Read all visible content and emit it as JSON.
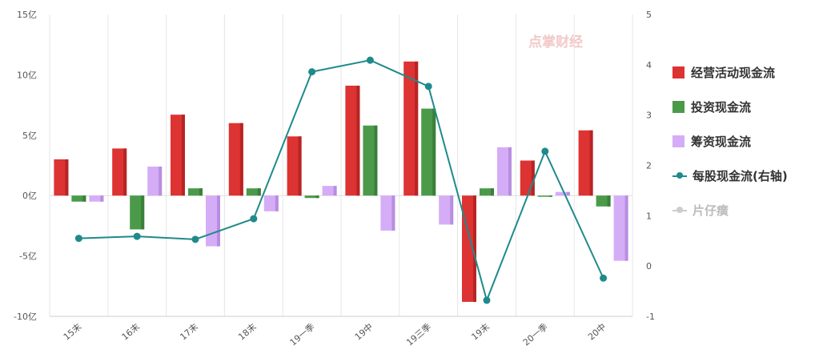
{
  "colors": {
    "operating": "#dd3333",
    "investing": "#4a9a4a",
    "financing": "#d5adf7",
    "per_share": "#1f8a8a",
    "hidden_series": "#cccccc",
    "grid": "#e6e6e6",
    "watermark": "#f2c9c9"
  },
  "watermark": {
    "text": "点掌财经"
  },
  "legend": [
    {
      "label": "经营活动现金流",
      "kind": "bar",
      "color": "#dd3333",
      "active": true
    },
    {
      "label": "投资现金流",
      "kind": "bar",
      "color": "#4a9a4a",
      "active": true
    },
    {
      "label": "筹资现金流",
      "kind": "bar",
      "color": "#d5adf7",
      "active": true
    },
    {
      "label": "每股现金流(右轴)",
      "kind": "line",
      "color": "#1f8a8a",
      "active": true
    },
    {
      "label": "片仔癀",
      "kind": "line",
      "color": "#cccccc",
      "active": false
    }
  ],
  "chart_data": {
    "type": "bar",
    "categories": [
      "15末",
      "16末",
      "17末",
      "18末",
      "19一季",
      "19中",
      "19三季",
      "19末",
      "20一季",
      "20中"
    ],
    "left_axis": {
      "ylim": [
        -10,
        15
      ],
      "ticks": [
        15,
        10,
        5,
        0,
        -5,
        -10
      ],
      "tick_labels": [
        "15亿",
        "10亿",
        "5亿",
        "0亿",
        "-5亿",
        "-10亿"
      ]
    },
    "right_axis": {
      "ylim": [
        -1,
        5
      ],
      "ticks": [
        5,
        4,
        3,
        2,
        1,
        0,
        -1
      ],
      "tick_labels": [
        "5",
        "4",
        "3",
        "2",
        "1",
        "0",
        "-1"
      ]
    },
    "series": [
      {
        "name": "经营活动现金流",
        "type": "bar",
        "axis": "left",
        "values": [
          3.0,
          3.9,
          6.7,
          6.0,
          4.9,
          9.1,
          11.1,
          -8.8,
          2.9,
          5.4
        ]
      },
      {
        "name": "投资现金流",
        "type": "bar",
        "axis": "left",
        "values": [
          -0.5,
          -2.8,
          0.6,
          0.6,
          -0.2,
          5.8,
          7.2,
          0.6,
          -0.1,
          -0.9
        ]
      },
      {
        "name": "筹资现金流",
        "type": "bar",
        "axis": "left",
        "values": [
          -0.5,
          2.4,
          -4.2,
          -1.3,
          0.8,
          -2.9,
          -2.4,
          4.0,
          0.3,
          -5.4
        ]
      },
      {
        "name": "每股现金流(右轴)",
        "type": "line",
        "axis": "right",
        "values": [
          0.55,
          0.59,
          0.53,
          0.94,
          3.86,
          4.09,
          3.57,
          -0.68,
          2.28,
          -0.24
        ]
      }
    ],
    "grid": true,
    "legend_position": "right"
  }
}
